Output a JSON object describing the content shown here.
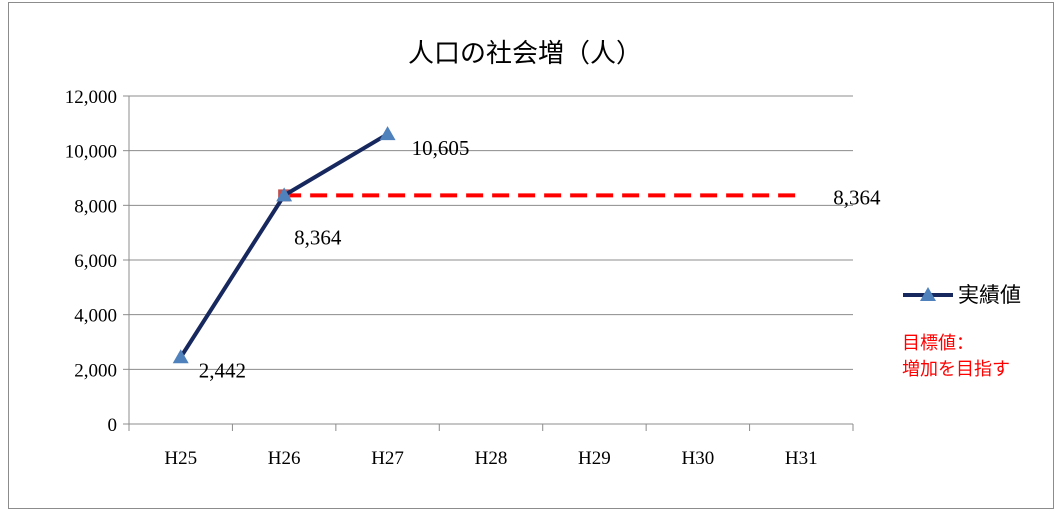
{
  "chart_data": {
    "type": "line",
    "title": "人口の社会増（人）",
    "categories": [
      "H25",
      "H26",
      "H27",
      "H28",
      "H29",
      "H30",
      "H31"
    ],
    "ylim": [
      0,
      12000
    ],
    "yticks": [
      0,
      2000,
      4000,
      6000,
      8000,
      10000,
      12000
    ],
    "ytick_labels": [
      "0",
      "2,000",
      "4,000",
      "6,000",
      "8,000",
      "10,000",
      "12,000"
    ],
    "grid": true,
    "legend_position": "right",
    "series": [
      {
        "name": "実績値",
        "color": "#17285e",
        "marker_color": "#4f81bd",
        "values": [
          2442,
          8364,
          10605,
          null,
          null,
          null,
          null
        ],
        "data_labels": [
          "2,442",
          "8,364",
          "10,605",
          "",
          "",
          "",
          ""
        ]
      }
    ],
    "target": {
      "label_lines": [
        "目標値：",
        "増加を目指す"
      ],
      "color": "#ff0000",
      "marker_color": "#c0504d",
      "start_category": "H26",
      "value": 8364,
      "value_label": "8,364"
    }
  }
}
